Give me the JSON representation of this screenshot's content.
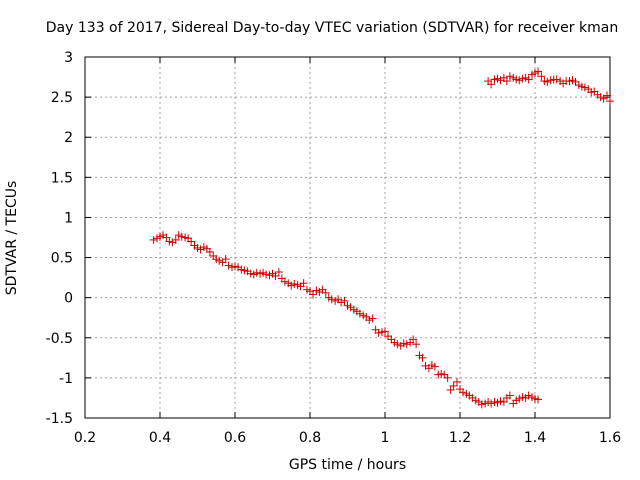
{
  "chart_data": {
    "type": "scatter",
    "title": "Day 133 of 2017, Sidereal Day-to-day VTEC variation (SDTVAR) for receiver kman",
    "xlabel": "GPS time / hours",
    "ylabel": "SDTVAR / TECUs",
    "xlim": [
      0.2,
      1.6
    ],
    "ylim": [
      -1.5,
      3
    ],
    "xticks": [
      "0.2",
      "0.4",
      "0.6",
      "0.8",
      "1",
      "1.2",
      "1.4",
      "1.6"
    ],
    "yticks": [
      "-1.5",
      "-1",
      "-0.5",
      "0",
      "0.5",
      "1",
      "1.5",
      "2",
      "2.5",
      "3"
    ],
    "grid": true,
    "marker": "+",
    "marker_color": "#cc0000",
    "series": [
      {
        "name": "SDTVAR",
        "points": [
          [
            0.383,
            0.72
          ],
          [
            0.392,
            0.74
          ],
          [
            0.4,
            0.76
          ],
          [
            0.408,
            0.78
          ],
          [
            0.417,
            0.75
          ],
          [
            0.425,
            0.7
          ],
          [
            0.433,
            0.69
          ],
          [
            0.442,
            0.72
          ],
          [
            0.45,
            0.78
          ],
          [
            0.458,
            0.76
          ],
          [
            0.467,
            0.75
          ],
          [
            0.475,
            0.74
          ],
          [
            0.483,
            0.7
          ],
          [
            0.492,
            0.65
          ],
          [
            0.5,
            0.62
          ],
          [
            0.508,
            0.6
          ],
          [
            0.517,
            0.63
          ],
          [
            0.525,
            0.61
          ],
          [
            0.533,
            0.57
          ],
          [
            0.542,
            0.52
          ],
          [
            0.55,
            0.48
          ],
          [
            0.558,
            0.46
          ],
          [
            0.567,
            0.44
          ],
          [
            0.575,
            0.48
          ],
          [
            0.583,
            0.4
          ],
          [
            0.592,
            0.38
          ],
          [
            0.6,
            0.39
          ],
          [
            0.608,
            0.38
          ],
          [
            0.617,
            0.35
          ],
          [
            0.625,
            0.34
          ],
          [
            0.633,
            0.33
          ],
          [
            0.642,
            0.3
          ],
          [
            0.65,
            0.29
          ],
          [
            0.658,
            0.31
          ],
          [
            0.667,
            0.3
          ],
          [
            0.675,
            0.31
          ],
          [
            0.683,
            0.29
          ],
          [
            0.692,
            0.28
          ],
          [
            0.7,
            0.3
          ],
          [
            0.708,
            0.27
          ],
          [
            0.717,
            0.32
          ],
          [
            0.725,
            0.24
          ],
          [
            0.733,
            0.2
          ],
          [
            0.742,
            0.18
          ],
          [
            0.75,
            0.15
          ],
          [
            0.758,
            0.17
          ],
          [
            0.767,
            0.16
          ],
          [
            0.775,
            0.14
          ],
          [
            0.783,
            0.18
          ],
          [
            0.792,
            0.1
          ],
          [
            0.8,
            0.08
          ],
          [
            0.808,
            0.04
          ],
          [
            0.817,
            0.09
          ],
          [
            0.825,
            0.07
          ],
          [
            0.833,
            0.1
          ],
          [
            0.842,
            0.06
          ],
          [
            0.85,
            0.0
          ],
          [
            0.858,
            -0.02
          ],
          [
            0.867,
            -0.04
          ],
          [
            0.875,
            -0.02
          ],
          [
            0.883,
            -0.06
          ],
          [
            0.892,
            -0.04
          ],
          [
            0.9,
            -0.1
          ],
          [
            0.908,
            -0.12
          ],
          [
            0.917,
            -0.15
          ],
          [
            0.925,
            -0.17
          ],
          [
            0.933,
            -0.2
          ],
          [
            0.942,
            -0.22
          ],
          [
            0.95,
            -0.24
          ],
          [
            0.958,
            -0.28
          ],
          [
            0.967,
            -0.26
          ],
          [
            0.975,
            -0.4
          ],
          [
            0.983,
            -0.44
          ],
          [
            0.992,
            -0.43
          ],
          [
            1.0,
            -0.42
          ],
          [
            1.008,
            -0.48
          ],
          [
            1.017,
            -0.52
          ],
          [
            1.025,
            -0.56
          ],
          [
            1.033,
            -0.58
          ],
          [
            1.042,
            -0.6
          ],
          [
            1.05,
            -0.57
          ],
          [
            1.058,
            -0.58
          ],
          [
            1.067,
            -0.56
          ],
          [
            1.075,
            -0.52
          ],
          [
            1.083,
            -0.58
          ],
          [
            1.092,
            -0.72
          ],
          [
            1.1,
            -0.75
          ],
          [
            1.108,
            -0.85
          ],
          [
            1.117,
            -0.88
          ],
          [
            1.125,
            -0.84
          ],
          [
            1.133,
            -0.86
          ],
          [
            1.142,
            -0.96
          ],
          [
            1.15,
            -0.95
          ],
          [
            1.158,
            -0.96
          ],
          [
            1.167,
            -1.0
          ],
          [
            1.175,
            -1.15
          ],
          [
            1.183,
            -1.1
          ],
          [
            1.192,
            -1.05
          ],
          [
            1.2,
            -1.14
          ],
          [
            1.208,
            -1.18
          ],
          [
            1.217,
            -1.2
          ],
          [
            1.225,
            -1.22
          ],
          [
            1.233,
            -1.25
          ],
          [
            1.242,
            -1.28
          ],
          [
            1.25,
            -1.3
          ],
          [
            1.258,
            -1.33
          ],
          [
            1.267,
            -1.32
          ],
          [
            1.275,
            -1.3
          ],
          [
            1.283,
            -1.32
          ],
          [
            1.292,
            -1.3
          ],
          [
            1.3,
            -1.31
          ],
          [
            1.308,
            -1.29
          ],
          [
            1.317,
            -1.3
          ],
          [
            1.325,
            -1.25
          ],
          [
            1.333,
            -1.22
          ],
          [
            1.342,
            -1.32
          ],
          [
            1.35,
            -1.28
          ],
          [
            1.358,
            -1.26
          ],
          [
            1.367,
            -1.24
          ],
          [
            1.375,
            -1.25
          ],
          [
            1.383,
            -1.22
          ],
          [
            1.392,
            -1.24
          ],
          [
            1.4,
            -1.26
          ],
          [
            1.408,
            -1.27
          ],
          [
            1.275,
            2.7
          ],
          [
            1.283,
            2.66
          ],
          [
            1.292,
            2.72
          ],
          [
            1.3,
            2.73
          ],
          [
            1.308,
            2.71
          ],
          [
            1.317,
            2.74
          ],
          [
            1.325,
            2.7
          ],
          [
            1.333,
            2.76
          ],
          [
            1.342,
            2.74
          ],
          [
            1.35,
            2.72
          ],
          [
            1.358,
            2.71
          ],
          [
            1.367,
            2.73
          ],
          [
            1.375,
            2.74
          ],
          [
            1.383,
            2.72
          ],
          [
            1.392,
            2.78
          ],
          [
            1.4,
            2.8
          ],
          [
            1.408,
            2.82
          ],
          [
            1.417,
            2.76
          ],
          [
            1.425,
            2.7
          ],
          [
            1.433,
            2.69
          ],
          [
            1.442,
            2.71
          ],
          [
            1.45,
            2.72
          ],
          [
            1.458,
            2.72
          ],
          [
            1.467,
            2.7
          ],
          [
            1.475,
            2.67
          ],
          [
            1.483,
            2.7
          ],
          [
            1.492,
            2.7
          ],
          [
            1.5,
            2.71
          ],
          [
            1.508,
            2.69
          ],
          [
            1.517,
            2.65
          ],
          [
            1.525,
            2.63
          ],
          [
            1.533,
            2.62
          ],
          [
            1.542,
            2.6
          ],
          [
            1.55,
            2.56
          ],
          [
            1.558,
            2.57
          ],
          [
            1.567,
            2.53
          ],
          [
            1.575,
            2.5
          ],
          [
            1.583,
            2.48
          ],
          [
            1.592,
            2.52
          ],
          [
            1.6,
            2.45
          ]
        ]
      }
    ]
  }
}
